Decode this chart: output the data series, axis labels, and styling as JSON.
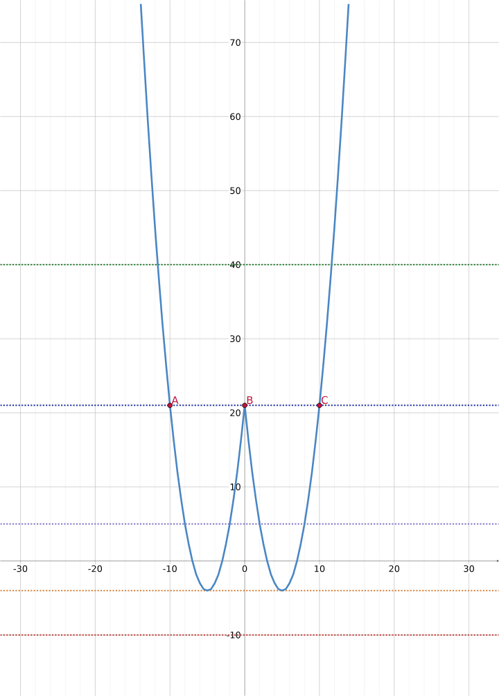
{
  "chart_data": {
    "type": "line",
    "xlim": [
      -32.7,
      34
    ],
    "ylim": [
      -18.2,
      75.7
    ],
    "xticks": [
      -30,
      -20,
      -10,
      0,
      10,
      20,
      30
    ],
    "yticks": [
      -10,
      10,
      20,
      30,
      40,
      50,
      60,
      70
    ],
    "grid": true,
    "marker": "none",
    "line_style": "solid",
    "series": [
      {
        "type": "line",
        "color": "#4a86c4",
        "x": [
          -13.9,
          -13.5,
          -13,
          -12.5,
          -12,
          -11.5,
          -11,
          -10.5,
          -10,
          -9.5,
          -9,
          -8.5,
          -8,
          -7.5,
          -7,
          -6.5,
          -6,
          -5.5,
          -5,
          -4.5,
          -4,
          -3.5,
          -3,
          -2.5,
          -2,
          -1.5,
          -1,
          -0.5,
          0,
          0.5,
          1,
          1.5,
          2,
          2.5,
          3,
          3.5,
          4,
          4.5,
          5,
          5.5,
          6,
          6.5,
          7,
          7.5,
          8,
          8.5,
          9,
          9.5,
          10,
          10.5,
          11,
          11.5,
          12,
          12.5,
          13,
          13.5,
          13.9
        ],
        "values": [
          75.2,
          68.3,
          60,
          52.3,
          45,
          38.3,
          32,
          26.3,
          21,
          16.3,
          12,
          8.3,
          5,
          2.3,
          0,
          -1.8,
          -3,
          -3.8,
          -4,
          -3.8,
          -3,
          -1.8,
          0,
          2.3,
          5,
          8.3,
          12,
          16.3,
          21,
          16.3,
          12,
          8.3,
          5,
          2.3,
          0,
          -1.8,
          -3,
          -3.8,
          -4,
          -3.8,
          -3,
          -1.8,
          0,
          2.3,
          5,
          8.3,
          12,
          16.3,
          21,
          26.3,
          32,
          38.3,
          45,
          52.3,
          60,
          68.3,
          75.2
        ]
      },
      {
        "type": "scatter",
        "color": "#c0143c",
        "x": [
          -10,
          0,
          10
        ],
        "values": [
          21,
          21,
          21
        ]
      }
    ],
    "ref_lines": [
      {
        "axis": "y",
        "value": 40,
        "color": "#3d8a45",
        "line_style": "dotted"
      },
      {
        "axis": "y",
        "value": 21,
        "color": "#2233a0",
        "line_style": "dotted"
      },
      {
        "axis": "y",
        "value": 5,
        "color": "#7a6cc4",
        "line_style": "dotted"
      },
      {
        "axis": "y",
        "value": -4,
        "color": "#d3823f",
        "line_style": "dotted"
      },
      {
        "axis": "y",
        "value": -10,
        "color": "#c4534a",
        "line_style": "dotted"
      }
    ],
    "annotations": [
      {
        "text": "A",
        "x": -10,
        "y": 21
      },
      {
        "text": "B",
        "x": 0,
        "y": 21
      },
      {
        "text": "C",
        "x": 10,
        "y": 21
      }
    ]
  }
}
